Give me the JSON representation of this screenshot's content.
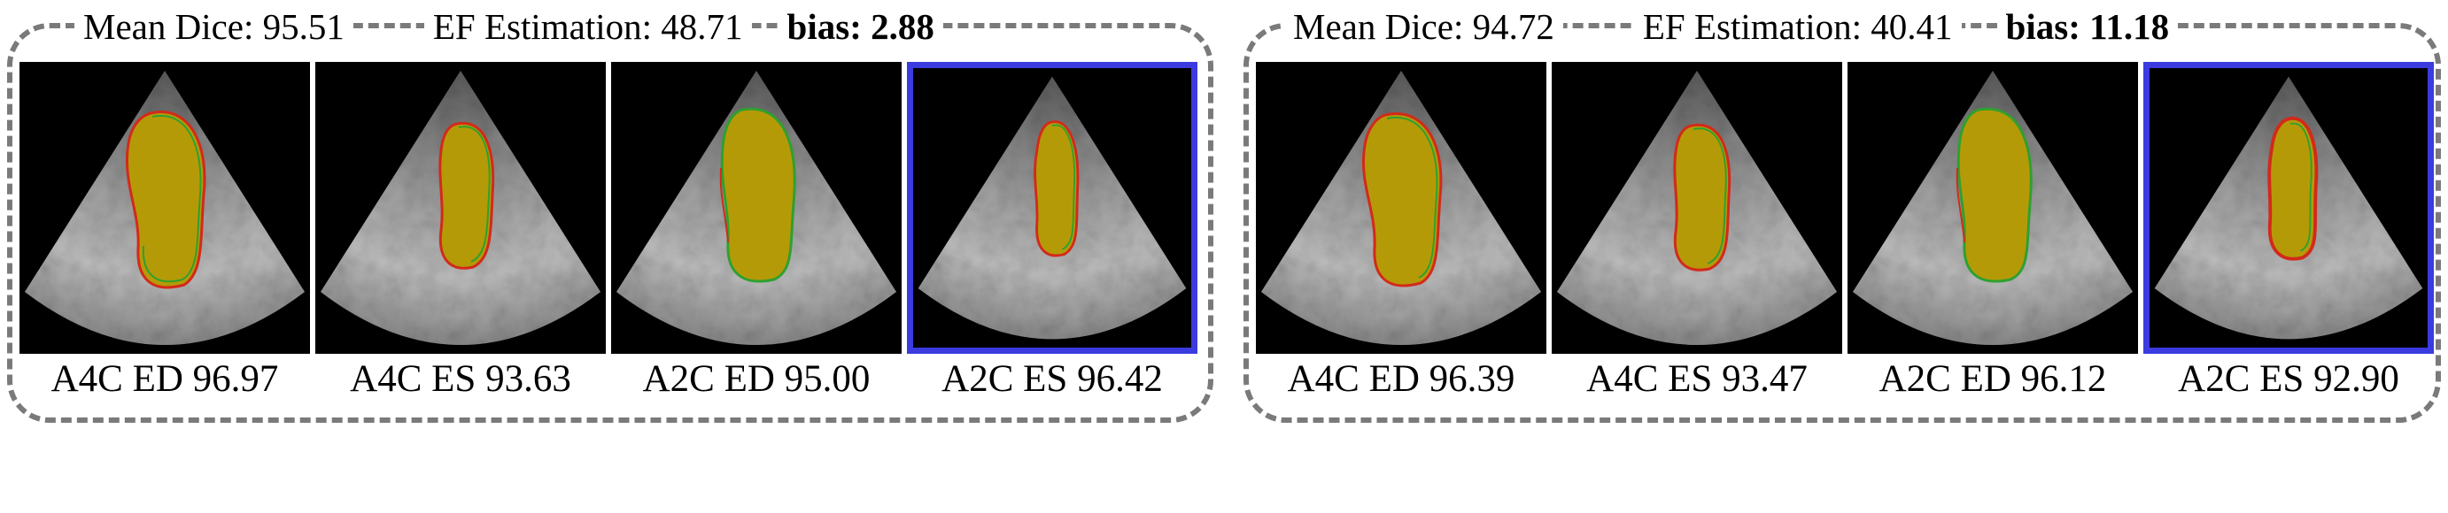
{
  "groups": [
    {
      "mean_dice_label": "Mean Dice: 95.51",
      "ef_label": "EF Estimation: 48.71",
      "bias_label": "bias: 2.88",
      "panels": [
        {
          "caption": "A4C ED 96.97",
          "highlighted": false
        },
        {
          "caption": "A4C ES 93.63",
          "highlighted": false
        },
        {
          "caption": "A2C ED 95.00",
          "highlighted": false
        },
        {
          "caption": "A2C ES 96.42",
          "highlighted": true
        }
      ]
    },
    {
      "mean_dice_label": "Mean Dice: 94.72",
      "ef_label": "EF Estimation: 40.41",
      "bias_label": "bias: 11.18",
      "panels": [
        {
          "caption": "A4C ED 96.39",
          "highlighted": false
        },
        {
          "caption": "A4C ES 93.47",
          "highlighted": false
        },
        {
          "caption": "A2C ED 96.12",
          "highlighted": false
        },
        {
          "caption": "A2C ES 92.90",
          "highlighted": true
        }
      ]
    }
  ],
  "colors": {
    "segmentation_fill": "#b59a08",
    "ground_truth_contour": "#2fa02f",
    "prediction_contour": "#d22a1a",
    "highlight_border": "#3b3be0",
    "group_border": "#7a7a7a"
  }
}
